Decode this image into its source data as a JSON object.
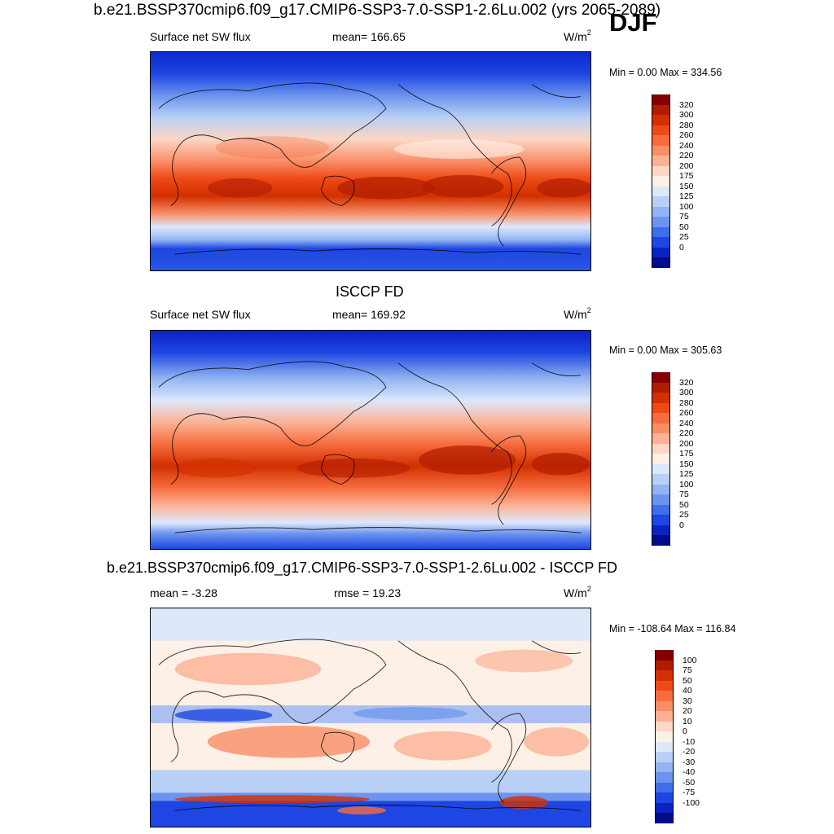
{
  "header": {
    "main_title": "b.e21.BSSP370cmip6.f09_g17.CMIP6-SSP3-7.0-SSP1-2.6Lu.002 (yrs 2065-2089)",
    "season": "DJF"
  },
  "panels": [
    {
      "id": "model",
      "title": "",
      "left_label": "Surface net SW flux",
      "center_label": "mean= 166.65",
      "units": "W/m",
      "units_sup": "2",
      "minmax": "Min =   0.00 Max = 334.56",
      "colorbar_labels": [
        "320",
        "300",
        "280",
        "260",
        "240",
        "220",
        "200",
        "175",
        "150",
        "125",
        "100",
        "75",
        "50",
        "25",
        "0"
      ],
      "colors": [
        "#840000",
        "#b01c00",
        "#d23000",
        "#ee4a16",
        "#f66c3e",
        "#f98e66",
        "#fbb294",
        "#fdd6c4",
        "#fdf0e6",
        "#dde8fb",
        "#b9d0f6",
        "#93b4f2",
        "#6c94ee",
        "#3f6eea",
        "#1e46e2",
        "#0a22c4",
        "#000c8a"
      ]
    },
    {
      "id": "obs",
      "title": "ISCCP FD",
      "left_label": "Surface net SW flux",
      "center_label": "mean= 169.92",
      "units": "W/m",
      "units_sup": "2",
      "minmax": "Min =   0.00 Max = 305.63",
      "colorbar_labels": [
        "320",
        "300",
        "280",
        "260",
        "240",
        "220",
        "200",
        "175",
        "150",
        "125",
        "100",
        "75",
        "50",
        "25",
        "0"
      ],
      "colors": [
        "#840000",
        "#b01c00",
        "#d23000",
        "#ee4a16",
        "#f66c3e",
        "#f98e66",
        "#fbb294",
        "#fdd6c4",
        "#fdf0e6",
        "#dde8fb",
        "#b9d0f6",
        "#93b4f2",
        "#6c94ee",
        "#3f6eea",
        "#1e46e2",
        "#0a22c4",
        "#000c8a"
      ]
    },
    {
      "id": "diff",
      "title": "b.e21.BSSP370cmip6.f09_g17.CMIP6-SSP3-7.0-SSP1-2.6Lu.002 - ISCCP FD",
      "left_label": "mean =  -3.28",
      "center_label": "rmse =  19.23",
      "units": "W/m",
      "units_sup": "2",
      "minmax": "Min = -108.64 Max = 116.84",
      "colorbar_labels": [
        "100",
        "75",
        "50",
        "40",
        "30",
        "20",
        "10",
        "0",
        "-10",
        "-20",
        "-30",
        "-40",
        "-50",
        "-75",
        "-100"
      ],
      "colors": [
        "#840000",
        "#b01c00",
        "#d23000",
        "#ee4a16",
        "#f66c3e",
        "#f98e66",
        "#fbb294",
        "#fdd6c4",
        "#fdf0e6",
        "#dde8fb",
        "#b9d0f6",
        "#93b4f2",
        "#6c94ee",
        "#3f6eea",
        "#1e46e2",
        "#0a22c4",
        "#000c8a"
      ]
    }
  ]
}
